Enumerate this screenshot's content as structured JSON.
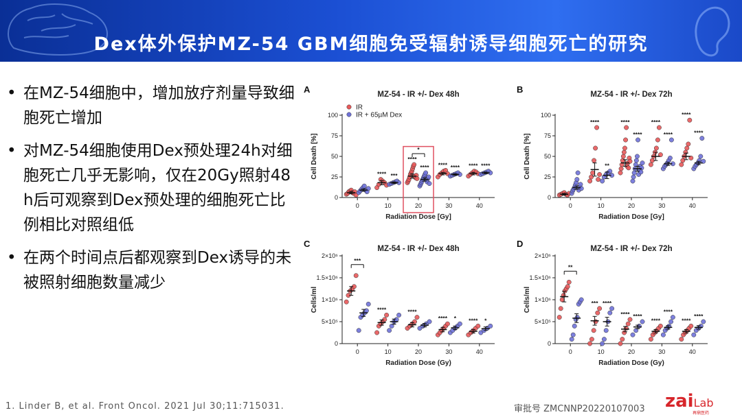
{
  "header": {
    "title": "Dex体外保护MZ-54 GBM细胞免受辐射诱导细胞死亡的研究"
  },
  "bullets": [
    {
      "text": "在MZ-54细胞中，增加放疗剂量导致细胞死亡增加"
    },
    {
      "text": "对MZ-54细胞使用Dex预处理24h对细胞死亡几乎无影响，仅在20Gy照射48 h后可观察到Dex预处理的细胞死亡比例相比对照组低"
    },
    {
      "text": "在两个时间点后都观察到Dex诱导的未被照射细胞数量减少"
    }
  ],
  "bullet_symbol": "•",
  "footer": {
    "reference": "1. Linder B, et al. Front Oncol. 2021 Jul 30;11:715031.",
    "approval": "审批号 ZMCNNP20220107003",
    "logo_main": "zai",
    "logo_lab": "Lab",
    "logo_cn": "再鼎医药"
  },
  "colors": {
    "ir": "#e8595a",
    "ir_dex": "#6f72d9",
    "header": "#1b4fd3",
    "highlight": "#e05060",
    "logo": "#d7262b"
  },
  "icons": [
    "brain-icon",
    "ear-icon"
  ],
  "chart_data": [
    {
      "panel": "A",
      "type": "scatter",
      "title": "MZ-54 - IR +/- Dex 48h",
      "xlabel": "Radiation Dose [Gy]",
      "ylabel": "Cell Death [%]",
      "xticks": [
        0,
        10,
        20,
        30,
        40
      ],
      "ylim": [
        0,
        100
      ],
      "yticks": [
        "0",
        "25",
        "50",
        "75",
        "100"
      ],
      "legend": [
        "IR",
        "IR + 65µM Dex"
      ],
      "legend_position": "top-left",
      "highlight_dose": 20,
      "bracket": {
        "dose": 20,
        "label": "*"
      },
      "series": [
        {
          "name": "IR",
          "means": [
            6,
            18,
            26,
            29,
            29
          ],
          "sem": [
            1.5,
            2.5,
            2.5,
            1.5,
            1.5
          ],
          "stars": [
            "",
            "****",
            "****",
            "****",
            "****"
          ],
          "points": [
            [
              4,
              5,
              7,
              8,
              9,
              6,
              5,
              7,
              3
            ],
            [
              12,
              16,
              22,
              20,
              18,
              15
            ],
            [
              18,
              20,
              22,
              25,
              28,
              30,
              32,
              35,
              38,
              40,
              26,
              24,
              27,
              23
            ],
            [
              25,
              28,
              30,
              32,
              33,
              29
            ],
            [
              26,
              28,
              30,
              32,
              31,
              29
            ]
          ]
        },
        {
          "name": "IR + 65µM Dex",
          "means": [
            9,
            18,
            22,
            28,
            30
          ],
          "sem": [
            1.5,
            1,
            2,
            1,
            1
          ],
          "stars": [
            "",
            "***",
            "****",
            "****",
            "****"
          ],
          "points": [
            [
              6,
              8,
              10,
              12,
              14,
              9,
              7,
              11
            ],
            [
              16,
              17,
              18,
              19,
              20,
              18
            ],
            [
              14,
              16,
              18,
              20,
              22,
              24,
              26,
              28,
              30,
              21,
              19,
              23,
              25,
              17
            ],
            [
              26,
              27,
              28,
              29,
              30,
              28
            ],
            [
              28,
              29,
              30,
              31,
              32,
              30
            ]
          ]
        }
      ]
    },
    {
      "panel": "B",
      "type": "scatter",
      "title": "MZ-54 - IR +/- Dex 72h",
      "xlabel": "Radiation Dose [Gy]",
      "ylabel": "Cell Death [%]",
      "xticks": [
        0,
        10,
        20,
        30,
        40
      ],
      "ylim": [
        0,
        100
      ],
      "yticks": [
        "0",
        "25",
        "50",
        "75",
        "100"
      ],
      "series": [
        {
          "name": "IR",
          "means": [
            4,
            34,
            42,
            50,
            50
          ],
          "sem": [
            1,
            8,
            4,
            5,
            4
          ],
          "stars": [
            "",
            "****",
            "****",
            "****",
            "****"
          ],
          "points": [
            [
              3,
              4,
              5,
              6,
              4,
              3,
              5
            ],
            [
              20,
              25,
              30,
              45,
              60,
              85,
              22,
              28
            ],
            [
              30,
              35,
              40,
              45,
              50,
              55,
              60,
              70,
              85,
              38,
              42,
              36,
              48,
              44
            ],
            [
              40,
              45,
              50,
              55,
              60,
              70,
              85,
              52
            ],
            [
              40,
              45,
              50,
              55,
              60,
              65,
              94,
              48
            ]
          ]
        },
        {
          "name": "IR + 65µM Dex",
          "means": [
            12,
            27,
            35,
            41,
            42
          ],
          "sem": [
            2,
            4,
            3,
            2,
            2
          ],
          "stars": [
            "",
            "**",
            "****",
            "****",
            "****"
          ],
          "points": [
            [
              5,
              8,
              10,
              12,
              15,
              18,
              22,
              30,
              9,
              13,
              16,
              11
            ],
            [
              20,
              25,
              28,
              30,
              32,
              27
            ],
            [
              20,
              25,
              30,
              35,
              40,
              45,
              50,
              70,
              28,
              33,
              38,
              31,
              36,
              42
            ],
            [
              35,
              38,
              40,
              42,
              45,
              48,
              70,
              41
            ],
            [
              35,
              38,
              40,
              42,
              45,
              50,
              72,
              44
            ]
          ]
        }
      ]
    },
    {
      "panel": "C",
      "type": "scatter",
      "title": "MZ-54 - IR +/- Dex 48h",
      "xlabel": "Radiation Dose (Gy)",
      "ylabel": "Cells/ml",
      "xticks": [
        0,
        10,
        20,
        30,
        40
      ],
      "ylim": [
        0,
        2000000
      ],
      "yticks": [
        "0",
        "5×10⁵",
        "1×10⁶",
        "1.5×10⁶",
        "2×10⁶"
      ],
      "bracket": {
        "dose": 0,
        "label": "***"
      },
      "series": [
        {
          "name": "IR",
          "means": [
            1200000,
            480000,
            430000,
            320000,
            280000
          ],
          "sem": [
            100000,
            60000,
            50000,
            50000,
            40000
          ],
          "stars": [
            "",
            "****",
            "****",
            "****",
            "****"
          ],
          "points": [
            [
              950000,
              1100000,
              1200000,
              1250000,
              1300000,
              1550000
            ],
            [
              250000,
              400000,
              450000,
              500000,
              550000,
              650000
            ],
            [
              350000,
              400000,
              450000,
              500000,
              600000
            ],
            [
              200000,
              250000,
              300000,
              350000,
              400000,
              450000
            ],
            [
              200000,
              250000,
              300000,
              350000,
              400000
            ]
          ]
        },
        {
          "name": "IR + 65µM Dex",
          "means": [
            700000,
            500000,
            420000,
            360000,
            340000
          ],
          "sem": [
            80000,
            60000,
            40000,
            40000,
            40000
          ],
          "stars": [
            "",
            "",
            "",
            "*",
            "*"
          ],
          "points": [
            [
              300000,
              600000,
              650000,
              700000,
              750000,
              900000
            ],
            [
              300000,
              400000,
              500000,
              550000,
              650000
            ],
            [
              350000,
              400000,
              450000,
              500000
            ],
            [
              250000,
              300000,
              350000,
              400000,
              450000
            ],
            [
              250000,
              300000,
              350000,
              400000
            ]
          ]
        }
      ]
    },
    {
      "panel": "D",
      "type": "scatter",
      "title": "MZ-54 - IR +/- Dex 72h",
      "xlabel": "Radiation Dose (Gy)",
      "ylabel": "Cells/ml",
      "xticks": [
        0,
        10,
        20,
        30,
        40
      ],
      "ylim": [
        0,
        2000000
      ],
      "yticks": [
        "0",
        "5×10⁵",
        "1×10⁶",
        "1.5×10⁶",
        "2×10⁶"
      ],
      "bracket": {
        "dose": 0,
        "label": "**"
      },
      "series": [
        {
          "name": "IR",
          "means": [
            1070000,
            520000,
            330000,
            280000,
            280000
          ],
          "sem": [
            120000,
            100000,
            60000,
            40000,
            40000
          ],
          "stars": [
            "",
            "***",
            "****",
            "****",
            "****"
          ],
          "points": [
            [
              600000,
              800000,
              1000000,
              1100000,
              1200000,
              1250000,
              1300000,
              1400000
            ],
            [
              0,
              100000,
              300000,
              500000,
              700000,
              800000
            ],
            [
              0,
              100000,
              250000,
              350000,
              450000,
              550000
            ],
            [
              100000,
              200000,
              250000,
              300000,
              350000,
              400000
            ],
            [
              100000,
              200000,
              250000,
              300000,
              350000,
              400000
            ]
          ]
        },
        {
          "name": "IR + 65µM Dex",
          "means": [
            580000,
            500000,
            380000,
            370000,
            370000
          ],
          "sem": [
            100000,
            100000,
            40000,
            40000,
            40000
          ],
          "stars": [
            "",
            "****",
            "****",
            "****",
            "****"
          ],
          "points": [
            [
              100000,
              200000,
              400000,
              550000,
              600000,
              900000,
              950000,
              1000000
            ],
            [
              0,
              100000,
              300000,
              500000,
              700000,
              800000
            ],
            [
              200000,
              300000,
              400000,
              500000
            ],
            [
              200000,
              300000,
              350000,
              400000,
              500000,
              600000
            ],
            [
              200000,
              300000,
              350000,
              400000,
              500000
            ]
          ]
        }
      ]
    }
  ]
}
